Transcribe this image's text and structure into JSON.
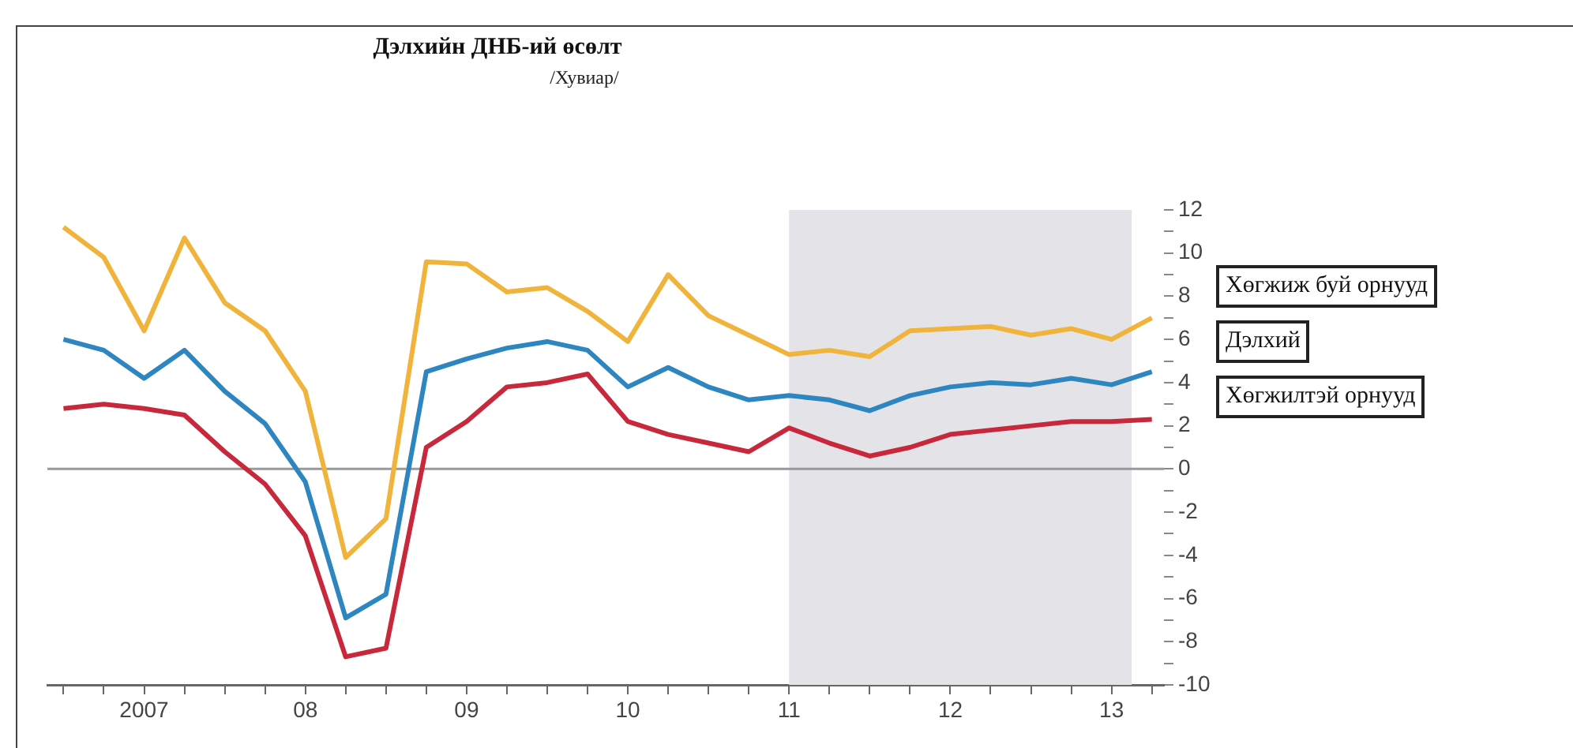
{
  "chart_data": {
    "type": "line",
    "title": "Дэлхийн ДНБ-ий өсөлт",
    "subtitle": "/Хувиар/",
    "categories": [
      null,
      null,
      "2007",
      null,
      null,
      null,
      "08",
      null,
      null,
      null,
      "09",
      null,
      null,
      null,
      "10",
      null,
      null,
      null,
      "11",
      null,
      null,
      null,
      "12",
      null,
      null,
      null,
      "13",
      null
    ],
    "series": [
      {
        "name": "Хөгжиж буй орнууд",
        "color": "#f0b43c",
        "values": [
          11.2,
          9.8,
          6.4,
          10.7,
          7.7,
          6.4,
          3.6,
          -4.1,
          -2.3,
          9.6,
          9.5,
          8.2,
          8.4,
          7.3,
          5.9,
          9.0,
          7.1,
          6.2,
          5.3,
          5.5,
          5.2,
          6.4,
          6.5,
          6.6,
          6.2,
          6.5,
          6.0,
          7.0
        ]
      },
      {
        "name": "Дэлхий",
        "color": "#2e86c1",
        "values": [
          6.0,
          5.5,
          4.2,
          5.5,
          3.6,
          2.1,
          -0.6,
          -6.9,
          -5.8,
          4.5,
          5.1,
          5.6,
          5.9,
          5.5,
          3.8,
          4.7,
          3.8,
          3.2,
          3.4,
          3.2,
          2.7,
          3.4,
          3.8,
          4.0,
          3.9,
          4.2,
          3.9,
          4.5
        ]
      },
      {
        "name": "Хөгжилтэй орнууд",
        "color": "#c8283c",
        "values": [
          2.8,
          3.0,
          2.8,
          2.5,
          0.8,
          -0.7,
          -3.1,
          -8.7,
          -8.3,
          1.0,
          2.2,
          3.8,
          4.0,
          4.4,
          2.2,
          1.6,
          1.2,
          0.8,
          1.9,
          1.2,
          0.6,
          1.0,
          1.6,
          1.8,
          2.0,
          2.2,
          2.2,
          2.3
        ]
      }
    ],
    "ylim": [
      -10,
      12
    ],
    "yticks": [
      -10,
      {
        "value": -9,
        "label": null
      },
      -8,
      {
        "value": -7,
        "label": null
      },
      -6,
      {
        "value": -5,
        "label": null
      },
      -4,
      {
        "value": -3,
        "label": null
      },
      -2,
      {
        "value": -1,
        "label": null
      },
      0,
      {
        "value": 1,
        "label": null
      },
      2,
      {
        "value": 3,
        "label": null
      },
      4,
      {
        "value": 5,
        "label": null
      },
      6,
      {
        "value": 7,
        "label": null
      },
      8,
      {
        "value": 9,
        "label": null
      },
      10,
      {
        "value": 11,
        "label": null
      },
      12
    ],
    "bands": [
      {
        "axis": "x",
        "from": "11",
        "to": "13",
        "color": "#e4e4e8"
      }
    ],
    "ref_lines": [
      {
        "axis": "y",
        "value": 0,
        "color": "#999999"
      }
    ],
    "legend": "right",
    "marker": "none",
    "line_style": "solid"
  }
}
